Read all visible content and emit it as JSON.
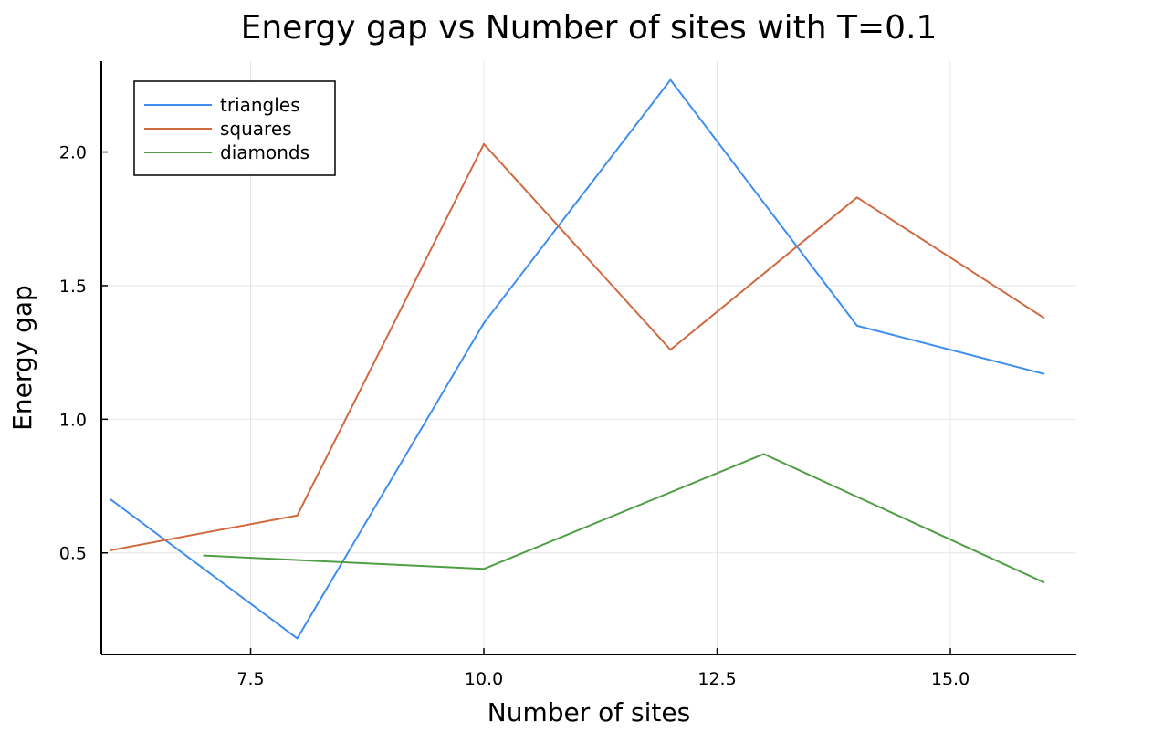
{
  "chart_data": {
    "type": "line",
    "title": "Energy gap vs Number of sites with T=0.1",
    "xlabel": "Number of sites",
    "ylabel": "Energy gap",
    "xlim": [
      5.9,
      16.35
    ],
    "ylim": [
      0.12,
      2.34
    ],
    "xticks": [
      7.5,
      10.0,
      12.5,
      15.0
    ],
    "xtick_labels": [
      "7.5",
      "10.0",
      "12.5",
      "15.0"
    ],
    "yticks": [
      0.5,
      1.0,
      1.5,
      2.0
    ],
    "ytick_labels": [
      "0.5",
      "1.0",
      "1.5",
      "2.0"
    ],
    "grid": true,
    "legend_position": "top-left",
    "series": [
      {
        "name": "triangles",
        "color": "#3e8ef0",
        "x": [
          6,
          8,
          10,
          12,
          14,
          16
        ],
        "y": [
          0.7,
          0.18,
          1.36,
          2.27,
          1.35,
          1.17
        ]
      },
      {
        "name": "squares",
        "color": "#d0693f",
        "x": [
          6,
          8,
          10,
          12,
          14,
          16
        ],
        "y": [
          0.51,
          0.64,
          2.03,
          1.26,
          1.83,
          1.38
        ]
      },
      {
        "name": "diamonds",
        "color": "#4f9e46",
        "x": [
          7,
          10,
          13,
          16
        ],
        "y": [
          0.49,
          0.44,
          0.87,
          0.39
        ]
      }
    ]
  }
}
